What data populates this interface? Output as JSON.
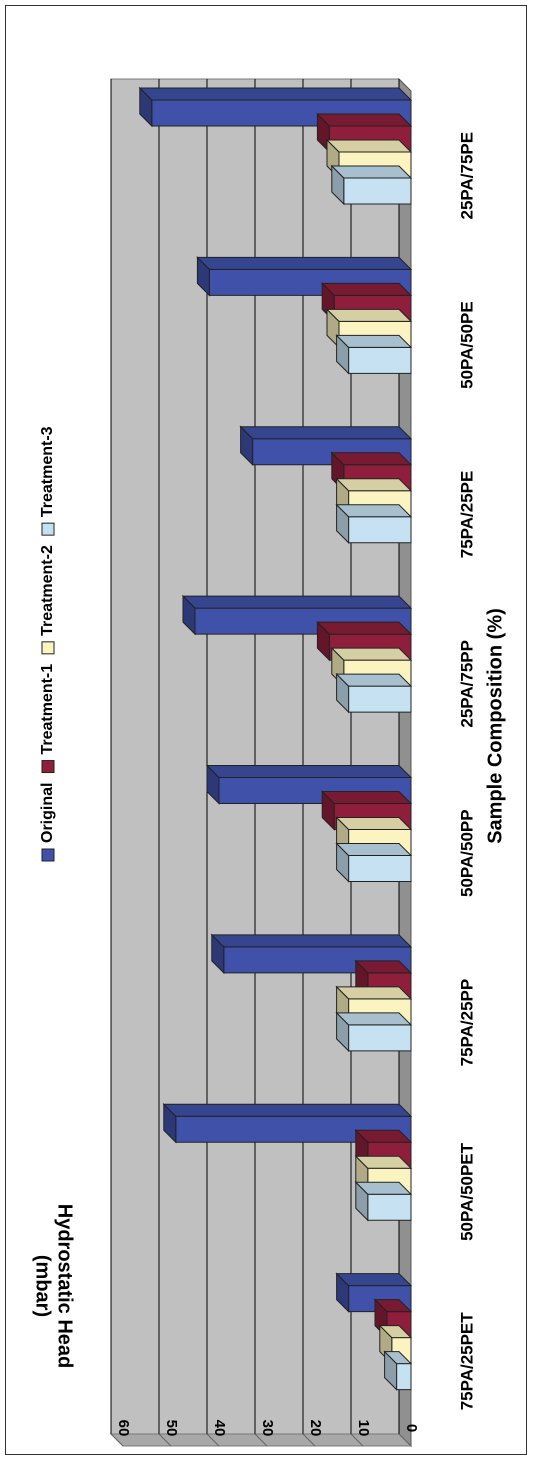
{
  "chart_data": {
    "type": "bar",
    "title": "",
    "xlabel": "Sample Composition (%)",
    "ylabel": "Hydrostatic Head (mbar)",
    "ylabel_lines": [
      "Hydrostatic Head",
      "(mbar)"
    ],
    "ylim": [
      0,
      60
    ],
    "yticks": [
      "0",
      "10",
      "20",
      "30",
      "40",
      "50",
      "60"
    ],
    "grid": true,
    "legend_position": "top",
    "categories": [
      "25PA/75PE",
      "50PA/50PE",
      "75PA/25PE",
      "25PA/75PP",
      "50PA/50PP",
      "75PA/25PP",
      "50PA/50PET",
      "75PA/25PET"
    ],
    "series": [
      {
        "name": "Original",
        "color": "#3f51a8",
        "values": [
          54,
          42,
          33,
          45,
          40,
          39,
          49,
          13
        ]
      },
      {
        "name": "Treatment-1",
        "color": "#8e1e3c",
        "values": [
          17,
          16,
          14,
          17,
          16,
          9,
          9,
          5
        ]
      },
      {
        "name": "Treatment-2",
        "color": "#fbf4c0",
        "values": [
          15,
          15,
          13,
          14,
          13,
          13,
          9,
          4
        ]
      },
      {
        "name": "Treatment-3",
        "color": "#c6e2f2",
        "values": [
          14,
          13,
          13,
          13,
          13,
          13,
          9,
          3
        ]
      }
    ]
  }
}
